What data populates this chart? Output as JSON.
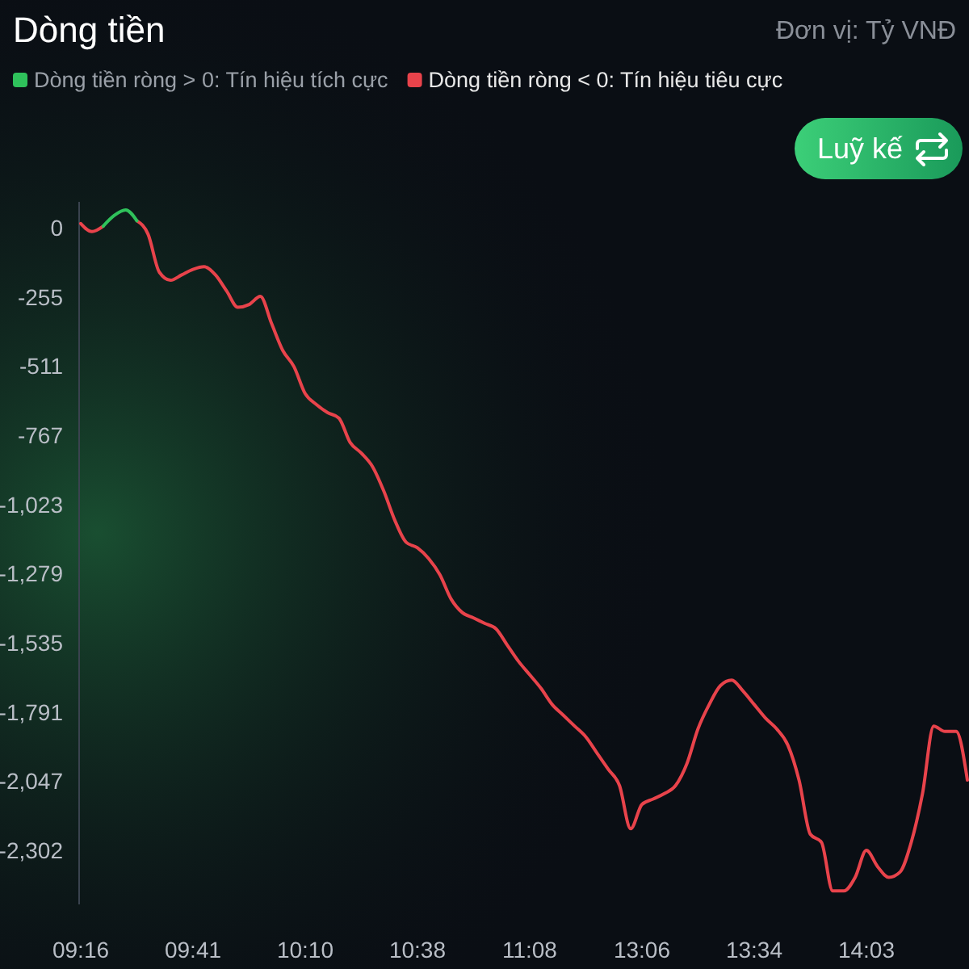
{
  "chart_data": {
    "type": "line",
    "title": "Dòng tiền",
    "subtitle": "Đơn vị: Tỷ VNĐ",
    "annotations": [
      "Luỹ kế"
    ],
    "categories": [
      "09:16",
      null,
      null,
      null,
      null,
      null,
      null,
      null,
      null,
      null,
      "09:41",
      null,
      null,
      null,
      null,
      null,
      null,
      null,
      null,
      null,
      "10:10",
      null,
      null,
      null,
      null,
      null,
      null,
      null,
      null,
      null,
      "10:38",
      null,
      null,
      null,
      null,
      null,
      null,
      null,
      null,
      null,
      "11:08",
      null,
      null,
      null,
      null,
      null,
      null,
      null,
      null,
      null,
      "13:06",
      null,
      null,
      null,
      null,
      null,
      null,
      null,
      null,
      null,
      "13:34",
      null,
      null,
      null,
      null,
      null,
      null,
      null,
      null,
      null,
      "14:03",
      null,
      null,
      null,
      null,
      null,
      null,
      null,
      null,
      null
    ],
    "series": [
      {
        "name": "Dòng tiền ròng > 0: Tín hiệu tích cực",
        "color": "#2fc25b",
        "values": [
          null,
          null,
          10,
          50,
          70,
          30,
          null,
          null,
          null,
          null,
          null,
          null,
          null,
          null,
          null,
          null,
          null,
          null,
          null,
          null,
          null,
          null,
          null,
          null,
          null,
          null,
          null,
          null,
          null,
          null,
          null,
          null,
          null,
          null,
          null,
          null,
          null,
          null,
          null,
          null,
          null,
          null,
          null,
          null,
          null,
          null,
          null,
          null,
          null,
          null,
          null,
          null,
          null,
          null,
          null,
          null,
          null,
          null,
          null,
          null,
          null,
          null,
          null,
          null,
          null,
          null,
          null,
          null,
          null,
          null,
          null,
          null,
          null,
          null,
          null,
          null,
          null,
          null,
          null,
          null
        ]
      },
      {
        "name": "Dòng tiền ròng < 0: Tín hiệu tiêu cực",
        "color": "#e8434b",
        "values": [
          20,
          -10,
          10,
          null,
          null,
          30,
          -20,
          -160,
          -190,
          -170,
          -150,
          -140,
          -170,
          -230,
          -290,
          -280,
          -250,
          -350,
          -450,
          -510,
          -610,
          -650,
          -680,
          -700,
          -790,
          -830,
          -880,
          -970,
          -1080,
          -1160,
          -1180,
          -1220,
          -1280,
          -1370,
          -1420,
          -1440,
          -1460,
          -1480,
          -1540,
          -1600,
          -1650,
          -1700,
          -1760,
          -1800,
          -1840,
          -1880,
          -1940,
          -2000,
          -2060,
          -2220,
          -2130,
          -2110,
          -2090,
          -2060,
          -1980,
          -1850,
          -1760,
          -1690,
          -1670,
          -1710,
          -1760,
          -1810,
          -1850,
          -1910,
          -2040,
          -2240,
          -2270,
          -2450,
          -2450,
          -2400,
          -2300,
          -2360,
          -2400,
          -2380,
          -2270,
          -2090,
          -1840,
          -1860,
          -1860,
          -2040
        ]
      }
    ],
    "ylim": [
      -2500,
      100
    ],
    "yticks": [
      0,
      -255,
      -511,
      -767,
      {
        "value": -1023,
        "label": "-1,023"
      },
      {
        "value": -1279,
        "label": "-1,279"
      },
      {
        "value": -1535,
        "label": "-1,535"
      },
      {
        "value": -1791,
        "label": "-1,791"
      },
      {
        "value": -2047,
        "label": "-2,047"
      },
      {
        "value": -2302,
        "label": "-2,302"
      }
    ],
    "legend": "top",
    "grid": false,
    "marker": "none",
    "line_style": "solid"
  }
}
